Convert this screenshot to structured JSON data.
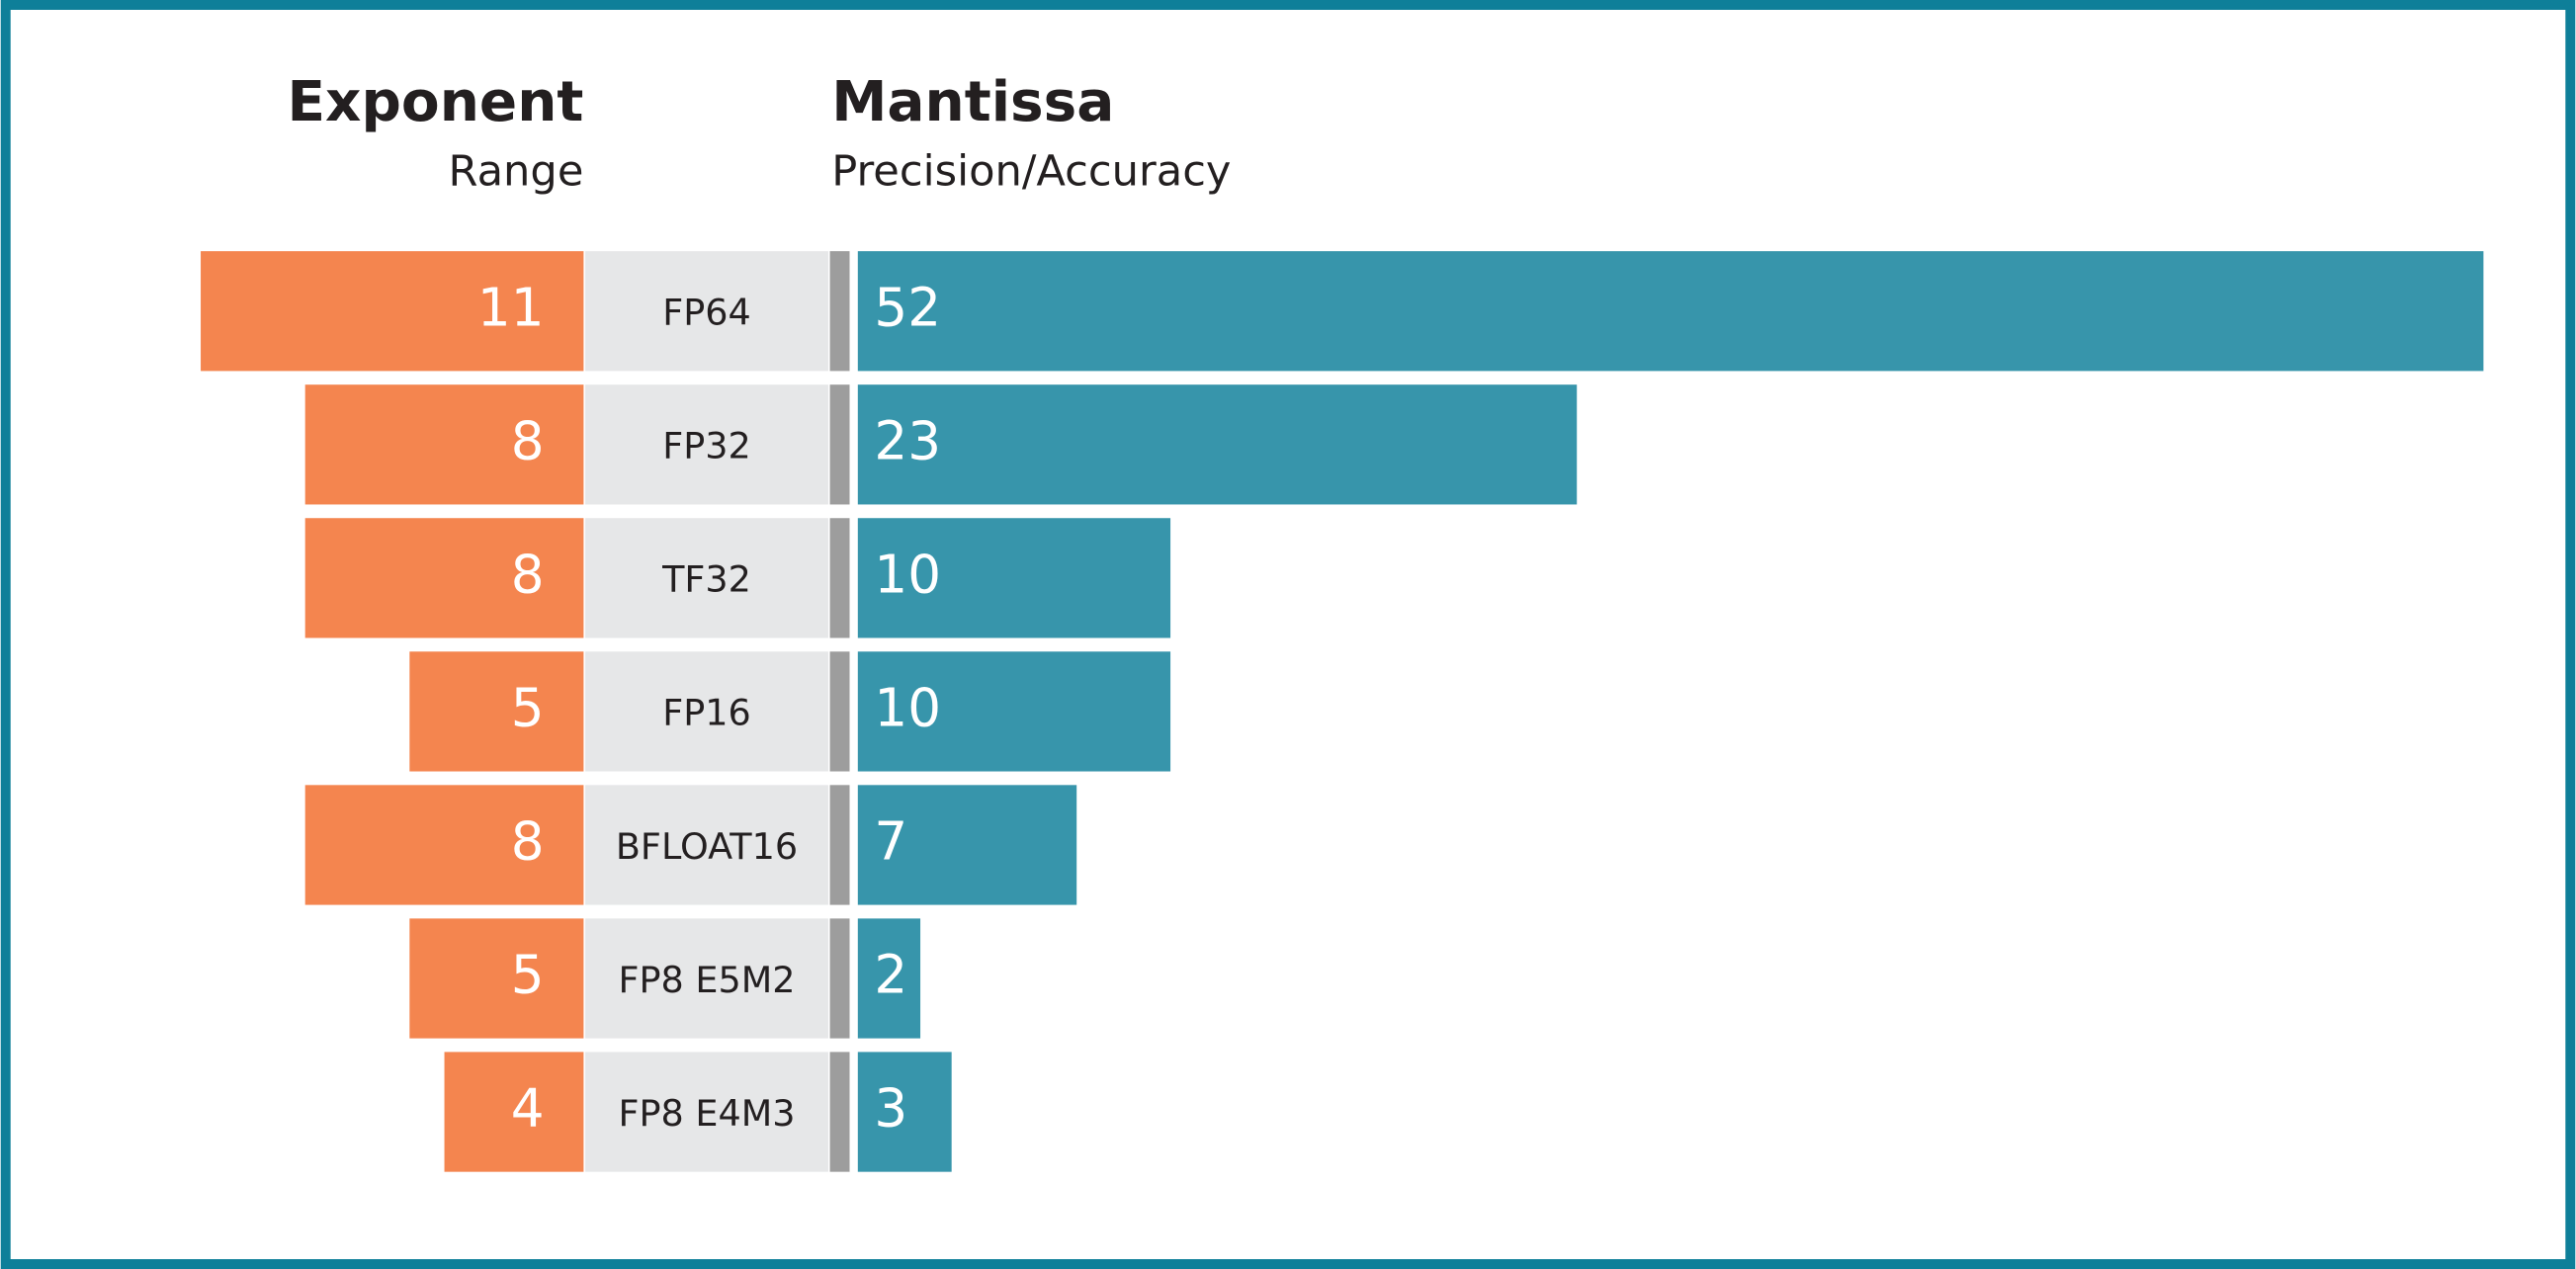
{
  "chart_data": {
    "type": "butterfly",
    "categories": [
      "FP64",
      "FP32",
      "TF32",
      "FP16",
      "BFLOAT16",
      "FP8 E5M2",
      "FP8 E4M3"
    ],
    "series": [
      {
        "name": "Exponent",
        "description": "Range",
        "color": "#f4854f",
        "values": [
          11,
          8,
          8,
          5,
          8,
          5,
          4
        ]
      },
      {
        "name": "Mantissa",
        "description": "Precision/Accuracy",
        "color": "#3795ab",
        "values": [
          52,
          23,
          10,
          10,
          7,
          2,
          3
        ]
      }
    ]
  }
}
